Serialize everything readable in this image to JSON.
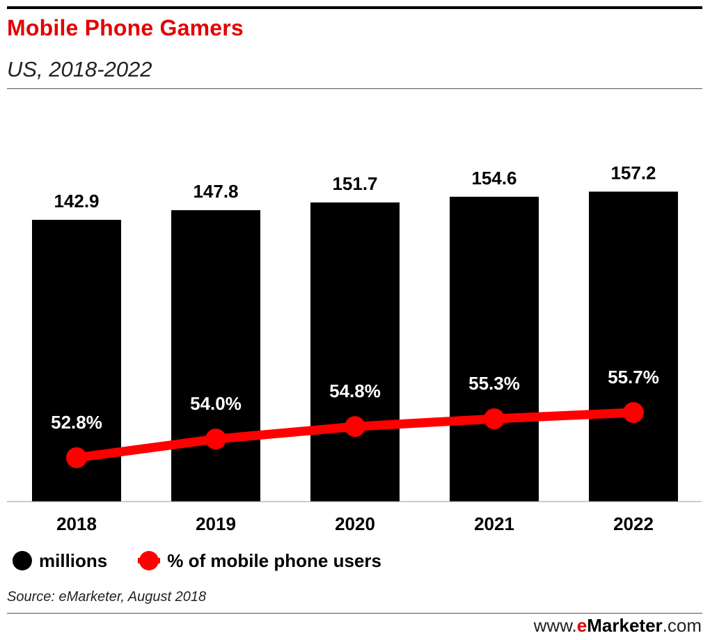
{
  "header": {
    "title": "Mobile Phone Gamers",
    "subtitle": "US, 2018-2022"
  },
  "colors": {
    "title": "#e40000",
    "bars": "#000000",
    "line": "#ff0000"
  },
  "chart_data": {
    "type": "bar",
    "categories": [
      "2018",
      "2019",
      "2020",
      "2021",
      "2022"
    ],
    "series": [
      {
        "name": "millions",
        "type": "bar",
        "values": [
          142.9,
          147.8,
          151.7,
          154.6,
          157.2
        ],
        "labels": [
          "142.9",
          "147.8",
          "151.7",
          "154.6",
          "157.2"
        ]
      },
      {
        "name": "% of mobile phone users",
        "type": "line",
        "values": [
          52.8,
          54.0,
          54.8,
          55.3,
          55.7
        ],
        "labels": [
          "52.8%",
          "54.0%",
          "54.8%",
          "55.3%",
          "55.7%"
        ]
      }
    ],
    "legend_position": "bottom-left",
    "grid": false
  },
  "legend": {
    "bars_label": "millions",
    "line_label": "% of mobile phone users"
  },
  "footer": {
    "source": "Source: eMarketer, August 2018",
    "brand_prefix": "www.",
    "brand_e": "e",
    "brand_name": "Marketer",
    "brand_suffix": ".com"
  }
}
